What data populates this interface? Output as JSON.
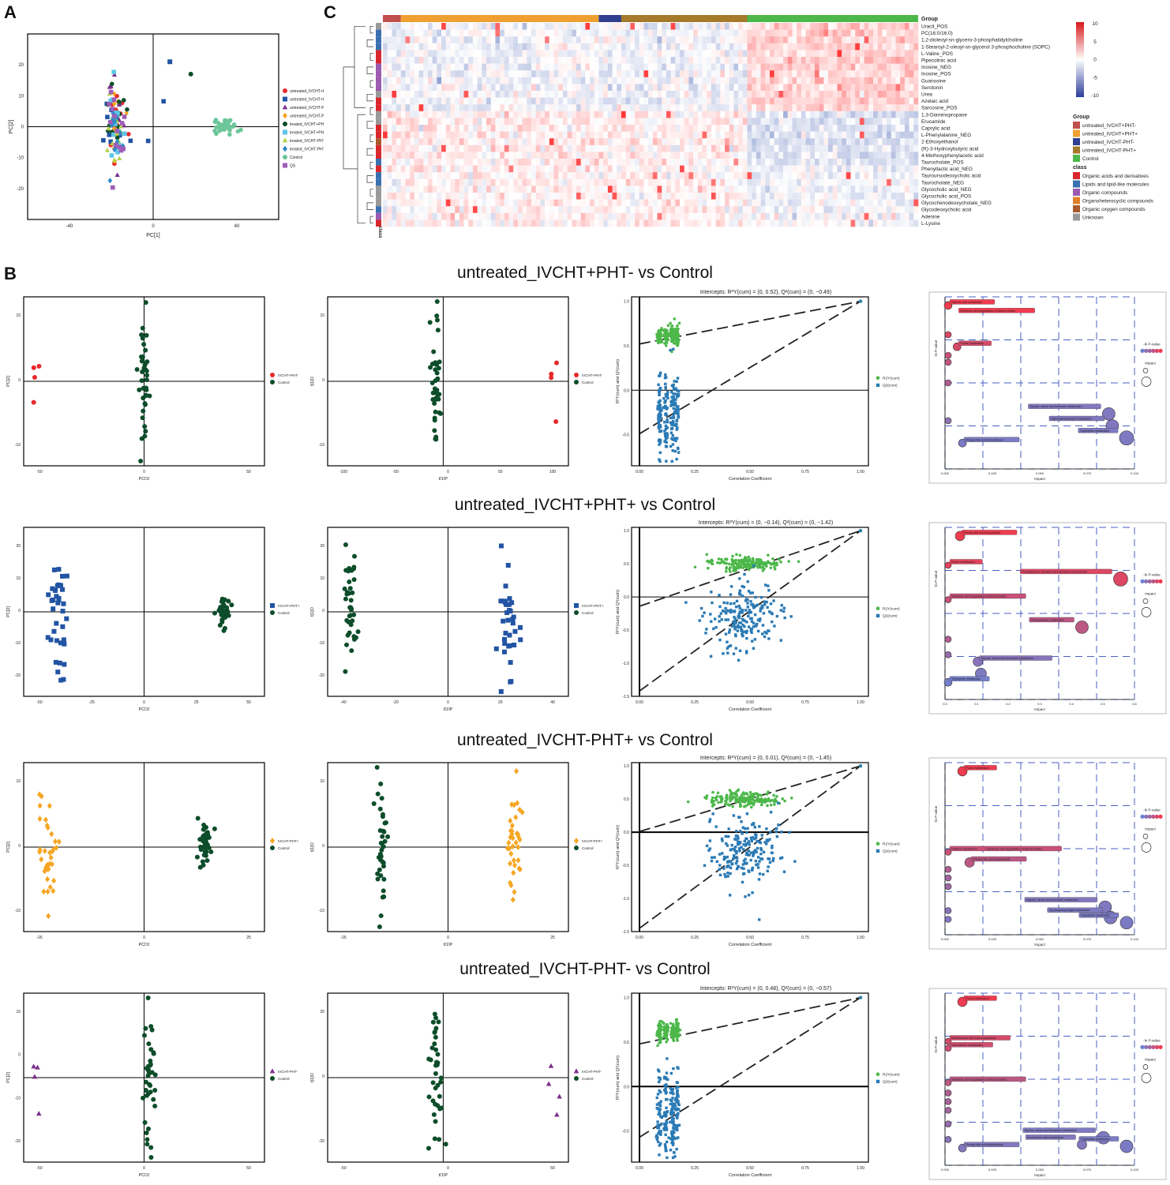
{
  "panel_letters": {
    "a": "A",
    "b": "B",
    "c": "C"
  },
  "colors": {
    "red": "#e8292a",
    "blue": "#2254a4",
    "purple": "#7b2f8c",
    "orange": "#f5a623",
    "darkgreen": "#0d4d2a",
    "cyan": "#5bc6e8",
    "lime": "#b3d34a",
    "steel": "#2e8bc9",
    "teal": "#6cc69a",
    "magenta": "#a05cb8",
    "plsgreen": "#4cb84a",
    "plsblue": "#2a7ab5"
  },
  "panel_a": {
    "xlabel": "PC[1]",
    "ylabel": "PC[2]",
    "xticks": [
      "-40",
      "0",
      "40"
    ],
    "yticks": [
      "20",
      "10",
      "0",
      "-10",
      "-20"
    ],
    "legend": [
      {
        "label": "untreated_IVCHT+PHT-",
        "shape": "circle",
        "color": "#e8292a"
      },
      {
        "label": "untreated_IVCHT+PHT+",
        "shape": "square",
        "color": "#2254a4"
      },
      {
        "label": "untreated_IVCHT-PHT-",
        "shape": "triangle",
        "color": "#7b2f8c"
      },
      {
        "label": "untreated_IVCHT-PHT+",
        "shape": "diamond",
        "color": "#f5a623"
      },
      {
        "label": "treated_IVCHT+PHT-",
        "shape": "circle",
        "color": "#0d4d2a"
      },
      {
        "label": "treated_IVCHT+PHT+",
        "shape": "square",
        "color": "#5bc6e8"
      },
      {
        "label": "treated_IVCHT-PHT-",
        "shape": "triangle",
        "color": "#b3d34a"
      },
      {
        "label": "treated_IVCHT-PHT+",
        "shape": "diamond",
        "color": "#2e8bc9"
      },
      {
        "label": "Control",
        "shape": "circle",
        "color": "#6cc69a"
      },
      {
        "label": "QS",
        "shape": "square",
        "color": "#a05cb8"
      }
    ]
  },
  "heatmap": {
    "metabolites": [
      "Uracil_POS",
      "PC(16:0/16:0)",
      "1,2-dioleoyl-sn-glycero-3-phosphatidylcholine",
      "1-Stearoyl-2-oleoyl-sn-glycerol 3-phosphocholine (SOPC)",
      "L-Valine_POS",
      "Pipecolinic acid",
      "Inosine_NEG",
      "Inosine_POS",
      "Guanosine",
      "Serotonin",
      "Urea",
      "Azelaic acid",
      "Sarcosine_POS",
      "1,3-Diaminopropane",
      "Erucamide",
      "Caprylic acid",
      "L-Phenylalanine_NEG",
      "2-Ethoxyethanol",
      "(R)-3-Hydroxybutyric acid",
      "4-Methoxyphenylacetic acid",
      "Taurocholate_POS",
      "Phenyllactic acid_NEG",
      "Tauroursodeoxycholic acid",
      "Taurocholate_NEG",
      "Glycocholic acid_NEG",
      "Glycocholic acid_POS",
      "Glycochenodeoxycholate_NEG",
      "Glycodeoxycholic acid",
      "Adenine",
      "L-Lysine"
    ],
    "class_index": [
      5,
      1,
      1,
      1,
      0,
      0,
      2,
      2,
      2,
      2,
      5,
      0,
      0,
      5,
      5,
      0,
      0,
      4,
      0,
      0,
      1,
      0,
      1,
      1,
      5,
      5,
      5,
      1,
      2,
      0
    ],
    "group_label": "Group",
    "class_axis_label": "class",
    "scale_ticks": [
      "10",
      "5",
      "0",
      "-5",
      "-10"
    ],
    "group_legend_title": "Group",
    "group_legend": [
      {
        "label": "untreated_IVCHT+PHT-",
        "color": "#c0504d"
      },
      {
        "label": "untreated_IVCHT+PHT+",
        "color": "#f0a030"
      },
      {
        "label": "untreated_IVCHT-PHT-",
        "color": "#303f8f"
      },
      {
        "label": "untreated_IVCHT-PHT+",
        "color": "#a57a2a"
      },
      {
        "label": "Control",
        "color": "#4cb84a"
      }
    ],
    "class_legend_title": "class",
    "class_legend": [
      {
        "label": "Organic acids and derivatives",
        "color": "#d9272e"
      },
      {
        "label": "Lipids and lipid-like molecules",
        "color": "#3a70b0"
      },
      {
        "label": "Organic compounds",
        "color": "#9c5ab0"
      },
      {
        "label": "Organoheterocyclic compounds",
        "color": "#e0802a"
      },
      {
        "label": "Organic oxygen compounds",
        "color": "#a85a2a"
      },
      {
        "label": "Unknown",
        "color": "#999999"
      }
    ],
    "group_bar": [
      {
        "label": "untreated_IVCHT+PHT-",
        "cols": 4
      },
      {
        "label": "untreated_IVCHT+PHT+",
        "cols": 44
      },
      {
        "label": "untreated_IVCHT-PHT-",
        "cols": 5
      },
      {
        "label": "untreated_IVCHT-PHT+",
        "cols": 28
      },
      {
        "label": "Control",
        "cols": 38
      }
    ]
  },
  "rows": [
    {
      "title": "untreated_IVCHT+PHT- vs Control",
      "pca": {
        "xlabel": "PC[1]",
        "ylabel": "PC[2]",
        "xticks": [
          "-50",
          "0",
          "50"
        ],
        "yticks": [
          "10",
          "0",
          "-10"
        ],
        "legend": [
          "IVCHT+PHT-",
          "Control"
        ]
      },
      "opls": {
        "xlabel": "t[1]P",
        "ylabel": "t[1]O",
        "xticks": [
          "-100",
          "-50",
          "0",
          "50",
          "100"
        ],
        "yticks": [
          "10",
          "0",
          "-10"
        ],
        "legend": [
          "IVCHT+PHT-",
          "Control"
        ]
      },
      "perm": {
        "intercepts": "Intercepts: R²Y(cum) = (0, 0.52), Q²(cum) = (0, −0.49)",
        "r2": 0.52,
        "q2": -0.49,
        "xlabel": "Correlation Coefficient",
        "ylabel": "R²Y(cum) and Q²(cum)",
        "xticks": [
          "0.00",
          "0.25",
          "0.50",
          "0.75",
          "1.00"
        ],
        "yticks": [
          "1.0",
          "0.5",
          "0.0",
          "-0.5"
        ],
        "ylim": [
          -0.85,
          1.05
        ],
        "legend": [
          "R2Y(cum)",
          "Q2(cum)"
        ]
      },
      "path": {
        "xlabel": "Impact",
        "ylabel": "-ln P-value",
        "xticks": [
          "0.000",
          "0.025",
          "0.050",
          "0.075",
          "0.100"
        ],
        "legend_title": "-ln P-value",
        "impact_title": "Impact",
        "bubbles": [
          {
            "x": 0.0,
            "y": 0.95,
            "r": 5,
            "c": 1,
            "label": "Glycolic acid metabolism"
          },
          {
            "x": 0.005,
            "y": 0.9,
            "r": 0,
            "c": 1,
            "label": "Synthesis and degradation of ketone bodies"
          },
          {
            "x": 0.0,
            "y": 0.78,
            "r": 4,
            "c": 0.85,
            "label": ""
          },
          {
            "x": 0.005,
            "y": 0.71,
            "r": 5,
            "c": 0.8,
            "label": "Purine metabolism"
          },
          {
            "x": 0.0,
            "y": 0.66,
            "r": 4,
            "c": 0.7,
            "label": ""
          },
          {
            "x": 0.0,
            "y": 0.62,
            "r": 4,
            "c": 0.65,
            "label": ""
          },
          {
            "x": 0.0,
            "y": 0.5,
            "r": 4,
            "c": 0.5,
            "label": ""
          },
          {
            "x": 0.0,
            "y": 0.28,
            "r": 4,
            "c": 0.25,
            "label": ""
          },
          {
            "x": 0.09,
            "y": 0.32,
            "r": 8,
            "c": 0.15,
            "label": "Glycine, serine and threonine metabolism"
          },
          {
            "x": 0.092,
            "y": 0.25,
            "r": 8,
            "c": 0.15,
            "label": "Glycerophospholipid metabolism"
          },
          {
            "x": 0.1,
            "y": 0.18,
            "r": 9,
            "c": 0.12,
            "label": "Tryptophan metabolism"
          },
          {
            "x": 0.008,
            "y": 0.15,
            "r": 5,
            "c": 0.1,
            "label": "Primary bile acid biosynthesis"
          }
        ]
      }
    },
    {
      "title": "untreated_IVCHT+PHT+ vs Control",
      "pca": {
        "xlabel": "PC[1]",
        "ylabel": "PC[2]",
        "xticks": [
          "-50",
          "-25",
          "0",
          "25",
          "50"
        ],
        "yticks": [
          "20",
          "10",
          "0",
          "-10",
          "-20"
        ],
        "legend": [
          "IVCHT+PHT+",
          "Control"
        ]
      },
      "opls": {
        "xlabel": "t[1]P",
        "ylabel": "t[1]O",
        "xticks": [
          "-40",
          "-20",
          "0",
          "20",
          "40"
        ],
        "yticks": [
          "20",
          "10",
          "0",
          "-10",
          "-20"
        ],
        "legend": [
          "IVCHT+PHT+",
          "Control"
        ]
      },
      "perm": {
        "intercepts": "Intercepts: R²Y(cum) = (0, −0.14), Q²(cum) = (0, −1.42)",
        "r2": -0.14,
        "q2": -1.42,
        "xlabel": "Correlation Coefficient",
        "ylabel": "R²Y(cum) and Q²(cum)",
        "xticks": [
          "0.00",
          "0.25",
          "0.50",
          "0.75",
          "1.00"
        ],
        "yticks": [
          "1.0",
          "0.5",
          "0.0",
          "-0.5",
          "-1.0",
          "-1.5"
        ],
        "ylim": [
          -1.5,
          1.05
        ],
        "legend": [
          "R2Y(cum)",
          "Q2(cum)"
        ]
      },
      "path": {
        "xlabel": "Impact",
        "ylabel": "-ln P-value",
        "xticks": [
          "0.0",
          "0.1",
          "0.2",
          "0.3",
          "0.4",
          "0.5",
          "0.6"
        ],
        "legend_title": "-ln P-value",
        "impact_title": "Impact",
        "bubbles": [
          {
            "x": 0.04,
            "y": 0.95,
            "r": 6,
            "c": 1,
            "label": "Primary bile acid biosynthesis"
          },
          {
            "x": 0.0,
            "y": 0.78,
            "r": 4,
            "c": 0.9,
            "label": "Purine metabolism"
          },
          {
            "x": 0.58,
            "y": 0.7,
            "r": 9,
            "c": 0.85,
            "label": "Phenylalanine, tyrosine and tryptophan biosynthesis"
          },
          {
            "x": 0.0,
            "y": 0.58,
            "r": 4,
            "c": 0.7,
            "label": "Synthesis and degradation of ketone bodies"
          },
          {
            "x": 0.45,
            "y": 0.42,
            "r": 8,
            "c": 0.6,
            "label": "Phenylalanine metabolism"
          },
          {
            "x": 0.0,
            "y": 0.35,
            "r": 4,
            "c": 0.5,
            "label": ""
          },
          {
            "x": 0.0,
            "y": 0.26,
            "r": 4,
            "c": 0.3,
            "label": ""
          },
          {
            "x": 0.1,
            "y": 0.22,
            "r": 6,
            "c": 0.2,
            "label": "Glycine, serine and threonine metabolism"
          },
          {
            "x": 0.11,
            "y": 0.15,
            "r": 7,
            "c": 0.12,
            "label": ""
          },
          {
            "x": 0.0,
            "y": 0.1,
            "r": 5,
            "c": 0.05,
            "label": "Tryptophan metabolism"
          }
        ]
      }
    },
    {
      "title": "untreated_IVCHT-PHT+ vs Control",
      "pca": {
        "xlabel": "PC[1]",
        "ylabel": "PC[2]",
        "xticks": [
          "-25",
          "0",
          "25"
        ],
        "yticks": [
          "10",
          "0",
          "-10"
        ],
        "legend": [
          "IVCHT-PHT+",
          "Control"
        ]
      },
      "opls": {
        "xlabel": "t[1]P",
        "ylabel": "t[1]O",
        "xticks": [
          "-25",
          "0",
          "25"
        ],
        "yticks": [
          "10",
          "0",
          "-10"
        ],
        "legend": [
          "IVCHT-PHT+",
          "Control"
        ]
      },
      "perm": {
        "intercepts": "Intercepts: R²Y(cum) = (0, 0.01), Q²(cum) = (0, −1.45)",
        "r2": 0.01,
        "q2": -1.45,
        "xlabel": "Correlation Coefficient",
        "ylabel": "R²Y(cum) and Q²(cum)",
        "xticks": [
          "0.00",
          "0.25",
          "0.50",
          "0.75",
          "1.00"
        ],
        "yticks": [
          "1.0",
          "0.5",
          "0.0",
          "-0.5",
          "-1.0",
          "-1.5"
        ],
        "ylim": [
          -1.5,
          1.05
        ],
        "legend": [
          "R2Y(cum)",
          "Q2(cum)"
        ]
      },
      "path": {
        "xlabel": "Impact",
        "ylabel": "-ln P-value",
        "xticks": [
          "0.000",
          "0.025",
          "0.050",
          "0.075",
          "0.100"
        ],
        "legend_title": "-ln P-value",
        "impact_title": "Impact",
        "bubbles": [
          {
            "x": 0.008,
            "y": 0.95,
            "r": 6,
            "c": 1,
            "label": "Purine metabolism"
          },
          {
            "x": 0.0,
            "y": 0.48,
            "r": 4,
            "c": 0.7,
            "label": "Caffeine metabolism"
          },
          {
            "x": 0.02,
            "y": 0.48,
            "r": 0,
            "c": 0.7,
            "label": "Synthesis and degradation of ketone bodies"
          },
          {
            "x": 0.012,
            "y": 0.42,
            "r": 6,
            "c": 0.6,
            "label": "Primary bile acid biosynthesis"
          },
          {
            "x": 0.0,
            "y": 0.38,
            "r": 4,
            "c": 0.5,
            "label": ""
          },
          {
            "x": 0.0,
            "y": 0.33,
            "r": 4,
            "c": 0.4,
            "label": ""
          },
          {
            "x": 0.0,
            "y": 0.28,
            "r": 4,
            "c": 0.35,
            "label": ""
          },
          {
            "x": 0.0,
            "y": 0.14,
            "r": 4,
            "c": 0.2,
            "label": ""
          },
          {
            "x": 0.0,
            "y": 0.09,
            "r": 4,
            "c": 0.15,
            "label": ""
          },
          {
            "x": 0.088,
            "y": 0.16,
            "r": 8,
            "c": 0.15,
            "label": "Glycine, serine and threonine metabolism"
          },
          {
            "x": 0.091,
            "y": 0.1,
            "r": 8,
            "c": 0.12,
            "label": "Glycerophospholipid metabolism"
          },
          {
            "x": 0.1,
            "y": 0.07,
            "r": 8,
            "c": 0.1,
            "label": "Tryptophan metabolism"
          }
        ]
      }
    },
    {
      "title": "untreated_IVCHT-PHT- vs Control",
      "pca": {
        "xlabel": "PC[1]",
        "ylabel": "PC[2]",
        "xticks": [
          "-50",
          "0",
          "50"
        ],
        "yticks": [
          "10",
          "0",
          "-10",
          "-20"
        ],
        "legend": [
          "IVCHT-PHT-",
          "Control"
        ]
      },
      "opls": {
        "xlabel": "t[1]P",
        "ylabel": "t[1]O",
        "xticks": [
          "-50",
          "0",
          "50"
        ],
        "yticks": [
          "20",
          "0",
          "-20"
        ],
        "legend": [
          "IVCHT-PHT-",
          "Control"
        ]
      },
      "perm": {
        "intercepts": "Intercepts: R²Y(cum) = (0, 0.48), Q²(cum) = (0, −0.57)",
        "r2": 0.48,
        "q2": -0.57,
        "xlabel": "Correlation Coefficient",
        "ylabel": "R²Y(cum) and Q²(cum)",
        "xticks": [
          "0.00",
          "0.25",
          "0.50",
          "0.75",
          "1.00"
        ],
        "yticks": [
          "1.0",
          "0.5",
          "0.0",
          "-0.5"
        ],
        "ylim": [
          -0.85,
          1.05
        ],
        "legend": [
          "R2Y(cum)",
          "Q2(cum)"
        ]
      },
      "path": {
        "xlabel": "Impact",
        "ylabel": "-ln P-value",
        "xticks": [
          "0.000",
          "0.025",
          "0.050",
          "0.075",
          "0.100"
        ],
        "legend_title": "-ln P-value",
        "impact_title": "Impact",
        "bubbles": [
          {
            "x": 0.008,
            "y": 0.95,
            "r": 6,
            "c": 1,
            "label": "Purine metabolism"
          },
          {
            "x": 0.0,
            "y": 0.72,
            "r": 4,
            "c": 0.8,
            "label": "Pantothenate and CoA biosynthesis"
          },
          {
            "x": 0.0,
            "y": 0.68,
            "r": 4,
            "c": 0.75,
            "label": "beta-Alanine metabolism"
          },
          {
            "x": 0.0,
            "y": 0.48,
            "r": 4,
            "c": 0.6,
            "label": "Synthesis and degradation of ketone bodies"
          },
          {
            "x": 0.0,
            "y": 0.42,
            "r": 4,
            "c": 0.5,
            "label": ""
          },
          {
            "x": 0.0,
            "y": 0.37,
            "r": 4,
            "c": 0.45,
            "label": ""
          },
          {
            "x": 0.0,
            "y": 0.32,
            "r": 4,
            "c": 0.4,
            "label": ""
          },
          {
            "x": 0.0,
            "y": 0.24,
            "r": 4,
            "c": 0.3,
            "label": ""
          },
          {
            "x": 0.0,
            "y": 0.15,
            "r": 4,
            "c": 0.2,
            "label": ""
          },
          {
            "x": 0.008,
            "y": 0.1,
            "r": 5,
            "c": 0.15,
            "label": "Primary bile acid biosynthesis"
          },
          {
            "x": 0.075,
            "y": 0.12,
            "r": 6,
            "c": 0.15,
            "label": "Arachidonic acid metabolism"
          },
          {
            "x": 0.087,
            "y": 0.16,
            "r": 8,
            "c": 0.12,
            "label": "Glycine, serine and threonine metabolism"
          },
          {
            "x": 0.1,
            "y": 0.11,
            "r": 8,
            "c": 0.1,
            "label": "Tryptophan metabolism"
          }
        ]
      }
    }
  ],
  "chart_data": [
    {
      "type": "scatter",
      "name_ref": "panel_a",
      "x_clusters": [
        {
          "group": "untreated/treated",
          "x_range": [
            -25,
            -15
          ],
          "y_range": [
            -12,
            28
          ]
        },
        {
          "group": "Control",
          "x_range": [
            30,
            40
          ],
          "y_range": [
            -3,
            3
          ]
        }
      ],
      "xlabel": "PC[1]",
      "ylabel": "PC[2]"
    },
    {
      "type": "heatmap",
      "rows": 30,
      "groups": [
        "untreated_IVCHT+PHT-",
        "untreated_IVCHT+PHT+",
        "untreated_IVCHT-PHT-",
        "untreated_IVCHT-PHT+",
        "Control"
      ],
      "zlim": [
        -10,
        10
      ]
    },
    {
      "type": "scatter",
      "comparisons": [
        "untreated_IVCHT+PHT- vs Control",
        "untreated_IVCHT+PHT+ vs Control",
        "untreated_IVCHT-PHT+ vs Control",
        "untreated_IVCHT-PHT- vs Control"
      ]
    }
  ]
}
